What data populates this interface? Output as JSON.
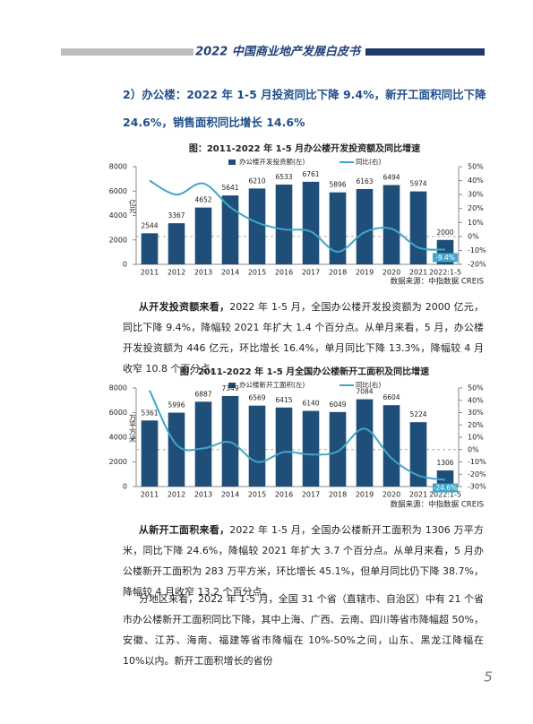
{
  "header": {
    "title": "2022 中国商业地产发展白皮书"
  },
  "section_heading": "2）办公楼：2022 年 1-5 月投资同比下降 9.4%，新开工面积同比下降 24.6%，销售面积同比增长 14.6%",
  "chart_data": [
    {
      "type": "bar",
      "title": "图：2011-2022 年 1-5 月办公楼开发投资额及同比增速",
      "categories": [
        "2011",
        "2012",
        "2013",
        "2014",
        "2015",
        "2016",
        "2017",
        "2018",
        "2019",
        "2020",
        "2021",
        "2022:1-5"
      ],
      "series": [
        {
          "name": "办公楼开发投资额(左)",
          "type": "bar",
          "color": "#1f4e79",
          "values": [
            2544,
            3367,
            4652,
            5641,
            6210,
            6533,
            6761,
            5896,
            6163,
            6494,
            5974,
            2000
          ]
        },
        {
          "name": "同比(右)",
          "type": "line",
          "axis": "y2",
          "color": "#41a6c8",
          "values": [
            40,
            30,
            38,
            21,
            10,
            5,
            3.5,
            -11,
            3,
            5.5,
            -8,
            -9.4
          ],
          "value_labels": [
            null,
            null,
            null,
            null,
            null,
            null,
            null,
            null,
            null,
            null,
            null,
            "-9.4%"
          ]
        }
      ],
      "y_label": "亿元",
      "ylim": [
        0,
        8000
      ],
      "yticks": [
        0,
        2000,
        4000,
        6000,
        8000
      ],
      "y2lim": [
        -20,
        50
      ],
      "y2ticks": [
        {
          "value": -20,
          "label": "-20%"
        },
        {
          "value": -10,
          "label": "-10%"
        },
        {
          "value": 0,
          "label": "0%"
        },
        {
          "value": 10,
          "label": "10%"
        },
        {
          "value": 20,
          "label": "20%"
        },
        {
          "value": 30,
          "label": "30%"
        },
        {
          "value": 40,
          "label": "40%"
        },
        {
          "value": 50,
          "label": "50%"
        }
      ],
      "source": "数据来源：中指数据 CREIS"
    },
    {
      "type": "bar",
      "title": "图：2011-2022 年 1-5 月全国办公楼新开工面积及同比增速",
      "categories": [
        "2011",
        "2012",
        "2013",
        "2014",
        "2015",
        "2016",
        "2017",
        "2018",
        "2019",
        "2020",
        "2021",
        "2022:1-5"
      ],
      "series": [
        {
          "name": "办公楼新开工面积(左)",
          "type": "bar",
          "color": "#1f4e79",
          "values": [
            5361,
            5996,
            6887,
            7349,
            6569,
            6415,
            6140,
            6049,
            7084,
            6604,
            5224,
            1306
          ]
        },
        {
          "name": "同比(右)",
          "type": "line",
          "axis": "y2",
          "color": "#41a6c8",
          "values": [
            48,
            4,
            1,
            6,
            -10,
            -2,
            -4,
            -1.5,
            17,
            -7,
            -21,
            -24.6
          ],
          "value_labels": [
            null,
            null,
            null,
            null,
            null,
            null,
            null,
            null,
            null,
            null,
            null,
            "-24.6%"
          ]
        }
      ],
      "y_label": "万平方米",
      "ylim": [
        0,
        8000
      ],
      "yticks": [
        0,
        2000,
        4000,
        6000,
        8000
      ],
      "y2lim": [
        -30,
        50
      ],
      "y2ticks": [
        {
          "value": -30,
          "label": "-30%"
        },
        {
          "value": -20,
          "label": "-20%"
        },
        {
          "value": -10,
          "label": "-10%"
        },
        {
          "value": 0,
          "label": "0%"
        },
        {
          "value": 10,
          "label": "10%"
        },
        {
          "value": 20,
          "label": "20%"
        },
        {
          "value": 30,
          "label": "30%"
        },
        {
          "value": 40,
          "label": "40%"
        },
        {
          "value": 50,
          "label": "50%"
        }
      ],
      "source": "数据来源：中指数据 CREIS"
    }
  ],
  "paragraphs": [
    {
      "lead": "从开发投资额来看，",
      "text": "2022 年 1-5 月，全国办公楼开发投资额为 2000 亿元，同比下降 9.4%，降幅较 2021 年扩大 1.4 个百分点。从单月来看，5 月，办公楼开发投资额为 446 亿元，环比增长 16.4%，单月同比下降 13.3%，降幅较 4 月收窄 10.8 个百分点。"
    },
    {
      "lead": "从新开工面积来看，",
      "text": "2022 年 1-5 月，全国办公楼新开工面积为 1306 万平方米，同比下降 24.6%，降幅较 2021 年扩大 3.7 个百分点。从单月来看，5 月办公楼新开工面积为 283 万平方米，环比增长 45.1%，但单月同比仍下降 38.7%，降幅较 4 月收窄 13.2 个百分点。"
    },
    {
      "text": "分地区来看，2022 年 1-5 月，全国 31 个省（直辖市、自治区）中有 21 个省市办公楼新开工面积同比下降，其中上海、广西、云南、四川等省市降幅超 50%，安徽、江苏、海南、福建等省市降幅在 10%-50%之间，山东、黑龙江降幅在 10%以内。新开工面积增长的省份"
    }
  ],
  "page_number": 5
}
